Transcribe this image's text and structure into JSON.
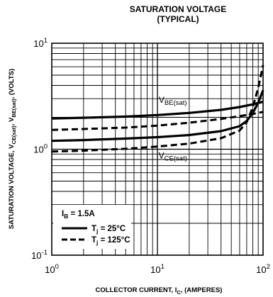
{
  "chart_data": {
    "type": "line",
    "title": "SATURATION VOLTAGE",
    "subtitle": "(TYPICAL)",
    "xlabel": {
      "prefix": "COLLECTOR CURRENT, I",
      "sub": "C",
      "suffix": ", (AMPERES)"
    },
    "ylabel": {
      "prefix": "SATURATION VOLTAGE, V",
      "sub1": "CE(sat)",
      "mid": ", V",
      "sub2": "BE(sat)",
      "suffix": ", (VOLTS)"
    },
    "x_scale": "log",
    "y_scale": "log",
    "xlim": [
      1,
      100
    ],
    "ylim": [
      0.1,
      10
    ],
    "grid": true,
    "x_ticks": [
      {
        "value": 1,
        "base": "10",
        "exp": "0"
      },
      {
        "value": 10,
        "base": "10",
        "exp": "1"
      },
      {
        "value": 100,
        "base": "10",
        "exp": "2"
      }
    ],
    "y_ticks": [
      {
        "value": 0.1,
        "base": "10",
        "exp": "-1"
      },
      {
        "value": 1,
        "base": "10",
        "exp": "0"
      },
      {
        "value": 10,
        "base": "10",
        "exp": "1"
      }
    ],
    "legend": {
      "position": "bottom-left",
      "condition": {
        "prefix": "I",
        "sub": "B",
        "suffix": " = 1.5A"
      },
      "entries": [
        {
          "style": "solid",
          "prefix": "T",
          "sub": "j",
          "suffix": " = 25°C"
        },
        {
          "style": "dashed",
          "prefix": "T",
          "sub": "j",
          "suffix": " = 125°C"
        }
      ]
    },
    "annotations": [
      {
        "id": "vbe",
        "prefix": "V",
        "sub": "BE(sat)",
        "x": 14,
        "y": 2.75
      },
      {
        "id": "vce",
        "prefix": "V",
        "sub": "CE(sat)",
        "x": 14,
        "y": 0.82
      }
    ],
    "series": [
      {
        "id": "vbe-25",
        "style": "solid",
        "x": [
          1,
          2,
          5,
          10,
          20,
          40,
          60,
          80,
          100
        ],
        "y": [
          1.95,
          1.98,
          2.03,
          2.1,
          2.2,
          2.35,
          2.5,
          2.65,
          2.8
        ]
      },
      {
        "id": "vbe-125",
        "style": "dashed",
        "x": [
          1,
          2,
          5,
          10,
          20,
          40,
          60,
          80,
          100
        ],
        "y": [
          1.52,
          1.55,
          1.6,
          1.67,
          1.78,
          1.93,
          2.05,
          2.15,
          2.25
        ]
      },
      {
        "id": "vce-25",
        "style": "solid",
        "x": [
          1,
          2,
          5,
          10,
          20,
          40,
          60,
          70,
          80,
          90,
          100
        ],
        "y": [
          1.2,
          1.22,
          1.26,
          1.3,
          1.36,
          1.48,
          1.65,
          1.85,
          2.2,
          2.75,
          3.6
        ]
      },
      {
        "id": "vce-125",
        "style": "dashed",
        "x": [
          1,
          2,
          5,
          10,
          20,
          40,
          60,
          70,
          80,
          90,
          100
        ],
        "y": [
          0.95,
          0.97,
          1.01,
          1.06,
          1.13,
          1.27,
          1.5,
          1.8,
          2.5,
          3.8,
          6.2
        ]
      }
    ]
  }
}
